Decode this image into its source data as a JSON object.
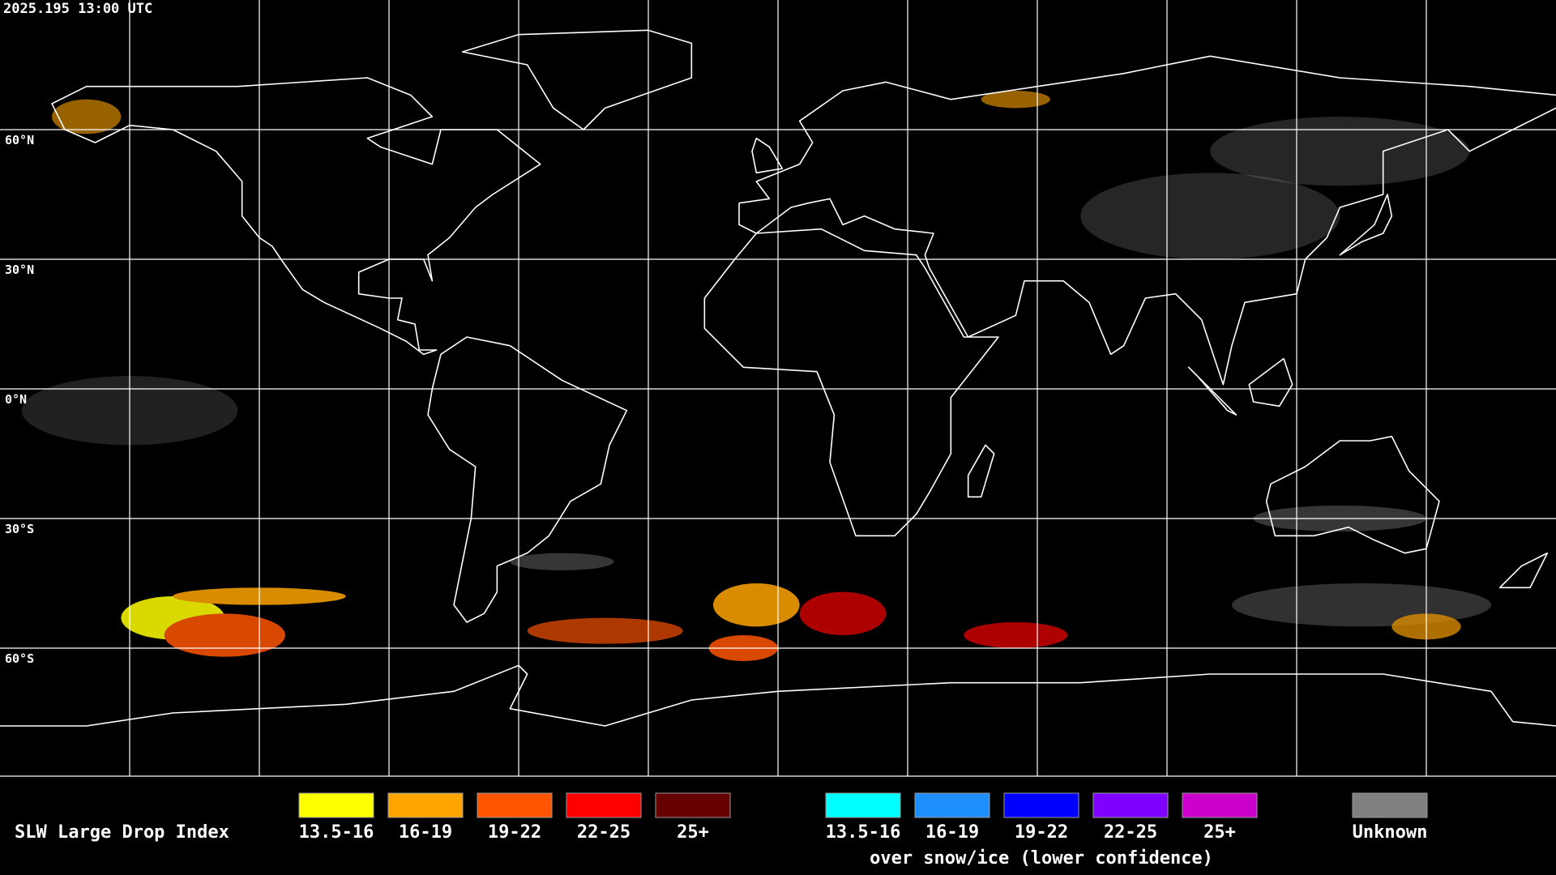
{
  "header": {
    "timestamp": "2025.195 13:00 UTC"
  },
  "map": {
    "latitude_labels": [
      "60°N",
      "30°N",
      "0°N",
      "30°S",
      "60°S"
    ]
  },
  "legend": {
    "title": "SLW Large Drop Index",
    "groups": [
      {
        "items": [
          {
            "label": "13.5-16",
            "color": "#ffff00"
          },
          {
            "label": "16-19",
            "color": "#ffa500"
          },
          {
            "label": "19-22",
            "color": "#ff5500"
          },
          {
            "label": "22-25",
            "color": "#ff0000"
          },
          {
            "label": "25+",
            "color": "#660000"
          }
        ]
      },
      {
        "items": [
          {
            "label": "13.5-16",
            "color": "#00ffff"
          },
          {
            "label": "16-19",
            "color": "#1e8fff"
          },
          {
            "label": "19-22",
            "color": "#0000ff"
          },
          {
            "label": "22-25",
            "color": "#7f00ff"
          },
          {
            "label": "25+",
            "color": "#cc00cc"
          }
        ],
        "caption": "over snow/ice (lower confidence)"
      }
    ],
    "unknown": {
      "label": "Unknown",
      "color": "#808080"
    }
  }
}
